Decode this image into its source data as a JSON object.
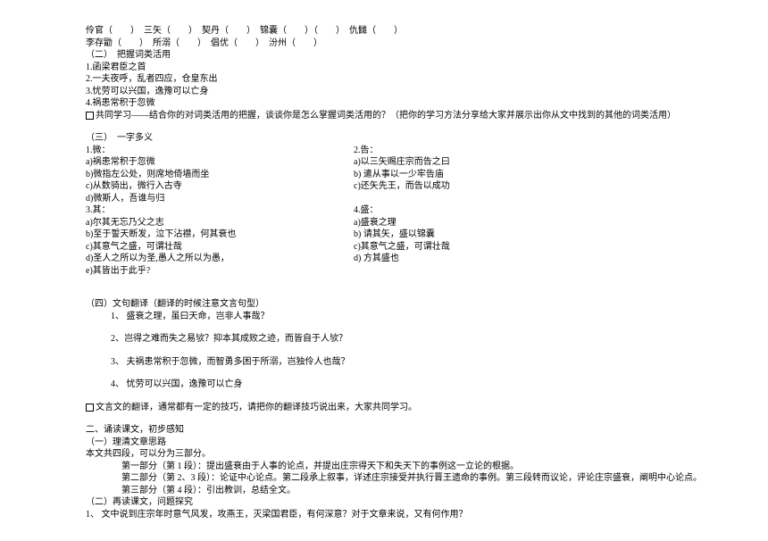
{
  "l1": "伶官（　　）　三矢（　　）　契丹（　　）　锦囊（　　）（　　）　仇雠（　　）",
  "l2": "李存勖（　　）　所溺（　　）　倡优（　　）　汾州（　　）",
  "s2_title": "（二）　把握词类活用",
  "s2_1": "1.函梁君臣之首",
  "s2_2": "2.一夫夜呼，乱者四应，仓皇东出",
  "s2_3": "3.忧劳可以兴国，逸豫可以亡身",
  "s2_4": "4.祸患常积于忽微",
  "s2_share": "共同学习——结合你的对词类活用的把握，谈谈你是怎么掌握词类活用的？（把你的学习方法分享给大家并展示出你从文中找到的其他的词类活用）",
  "s3_title": "（三）　一字多义",
  "s3_left": {
    "h1": "1.微：",
    "a": "a)祸患常积于忽微",
    "b": "b)微指左公处，则席地倚墙而坐",
    "c": "c)从数骑出，微行入古寺",
    "d": "d)微斯人，吾谁与归",
    "h3": "3.其：",
    "a3": "a)尔其无忘乃父之志",
    "b3": "b)至于誓天断发，泣下沾襟，何其衰也",
    "c3": "c)其意气之盛，可谓壮哉",
    "d3": "d)圣人之所以为圣,愚人之所以为愚，",
    "e3": "e)其皆出于此乎?"
  },
  "s3_right": {
    "h2": "2.告：",
    "a": "a)以三矢赐庄宗而告之曰",
    "b": "b) 遣从事以一少牢告庙",
    "c": "c)还矢先王，而告以成功",
    "h4": "4.盛：",
    "a4": "a)盛衰之理",
    "b4": "b) 请其矢，盛以锦囊",
    "c4": "c)其意气之盛，可谓壮哉",
    "d4": "d) 方其盛也"
  },
  "s4_title": "（四）文句翻译（翻译的时候注意文言句型）",
  "s4_1": "1、 盛衰之理，虽曰天命，岂非人事哉？",
  "s4_2": "2、岂得之难而失之易欤？抑本其成败之迹，而皆自于人欤？",
  "s4_3": "3、 夫祸患常积于忽微，而智勇多困于所溺，岂独伶人也哉？",
  "s4_4": "4、 忧劳可以兴国，逸豫可以亡身",
  "s4_share": "文言文的翻译，通常都有一定的技巧，请把你的翻译技巧说出来，大家共同学习。",
  "p2_h": "二、诵读课文，初步感知",
  "p2_1": "（一）理清文章思路",
  "p2_2": "本文共四段，可以分为三部分。",
  "p2_3": "第一部分（第 1 段）：提出盛衰由于人事的论点，并提出庄宗得天下和失天下的事例这一立论的根据。",
  "p2_4": "第二部分（第 2、3 段）：论证中心论点。第二段承上叙事，详述庄宗接受并执行晋王遗命的事例。第三段转而议论，评论庄宗盛衰，阐明中心论点。",
  "p2_5": "第三部分（第 4 段）：引出教训，总结全文。",
  "p3_1": "（二）再读课文，问题探究",
  "p3_2": "1、 文中说到庄宗年时意气风发，攻燕王，灭梁国君臣，有何深意？对于文章来说，又有何作用？"
}
